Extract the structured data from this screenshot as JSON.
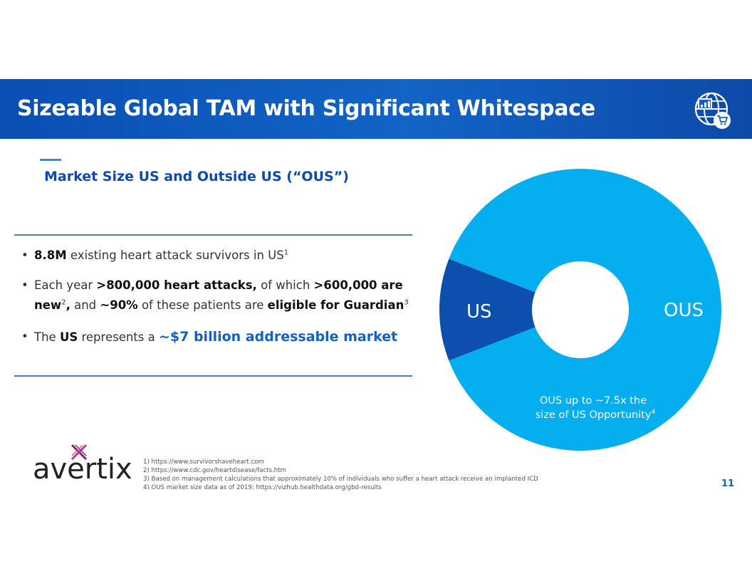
{
  "header": {
    "title": "Sizeable Global TAM with Significant Whitespace",
    "icon": "globe-chart-cart-icon"
  },
  "section": {
    "title": "Market Size US and Outside US (“OUS”)"
  },
  "bullets": [
    {
      "b_lead": "8.8M",
      "text": " existing heart attack survivors in US",
      "sup": "1"
    },
    {
      "pre": "Each year ",
      "b1": ">800,000 heart attacks,",
      "mid1": " of which ",
      "b2": ">600,000 are new",
      "sup1": "2",
      "b3": ",",
      "mid2": " and ",
      "b4": "~90%",
      "mid3": " of these patients are ",
      "b5": "eligible for Guardian",
      "sup2": "3"
    },
    {
      "pre": "The ",
      "b1": "US",
      "mid": " represents a ",
      "highlight": "~$7 billion addressable market"
    }
  ],
  "chart_data": {
    "type": "pie",
    "style": "donut",
    "categories": [
      "US",
      "OUS"
    ],
    "values": [
      1,
      7.5
    ],
    "colors": [
      "#0c4fad",
      "#04aeef"
    ],
    "annotation": {
      "line1": "OUS up to ~7.5x the",
      "line2": "size of US Opportunity",
      "sup": "4"
    }
  },
  "logo": {
    "text": "avertix"
  },
  "footnotes": [
    "1) https://www.survivorshaveheart.com",
    "2) https://www.cdc.gov/heartdisease/facts.htm",
    "3) Based on management calculations that approximately 10% of individuals who suffer a heart attack receive an implanted ICD",
    "4) OUS market size data as of 2019; https://vizhub.healthdata.org/gbd-results"
  ],
  "page_number": "11"
}
